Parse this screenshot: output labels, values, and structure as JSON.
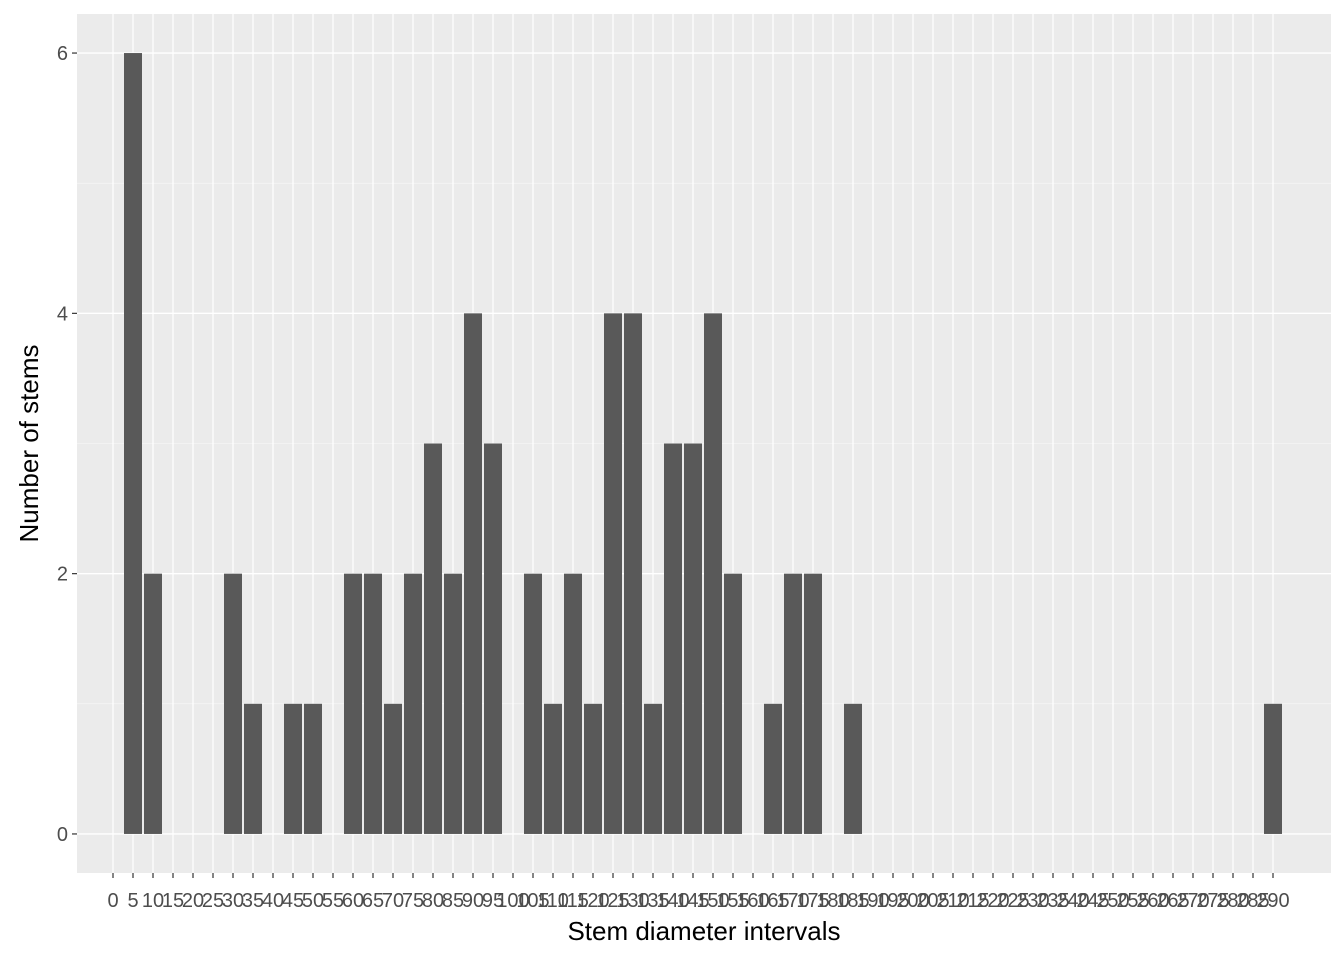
{
  "chart_data": {
    "type": "bar",
    "title": "",
    "xlabel": "Stem diameter intervals",
    "ylabel": "Number of stems",
    "categories": [
      "0",
      "5",
      "10",
      "15",
      "20",
      "25",
      "30",
      "35",
      "40",
      "45",
      "50",
      "55",
      "60",
      "65",
      "70",
      "75",
      "80",
      "85",
      "90",
      "95",
      "100",
      "105",
      "110",
      "115",
      "120",
      "125",
      "130",
      "135",
      "140",
      "145",
      "150",
      "155",
      "160",
      "165",
      "170",
      "175",
      "180",
      "185",
      "190",
      "195",
      "200",
      "205",
      "210",
      "215",
      "220",
      "225",
      "230",
      "235",
      "240",
      "245",
      "250",
      "255",
      "260",
      "265",
      "270",
      "275",
      "280",
      "285",
      "290"
    ],
    "values": [
      0,
      6,
      2,
      0,
      0,
      0,
      2,
      1,
      0,
      1,
      1,
      0,
      2,
      2,
      1,
      2,
      3,
      2,
      4,
      3,
      0,
      2,
      1,
      2,
      1,
      4,
      4,
      1,
      3,
      3,
      4,
      2,
      0,
      1,
      2,
      2,
      0,
      1,
      0,
      0,
      0,
      0,
      0,
      0,
      0,
      0,
      0,
      0,
      0,
      0,
      0,
      0,
      0,
      0,
      0,
      0,
      0,
      0,
      1
    ],
    "ylim": [
      -0.3,
      6.3
    ],
    "yticks": [
      0,
      2,
      4,
      6
    ],
    "grid": true,
    "colors": {
      "panel": "#ebebeb",
      "grid_major": "#ffffff",
      "bar": "#595959",
      "tick": "#333333"
    }
  }
}
